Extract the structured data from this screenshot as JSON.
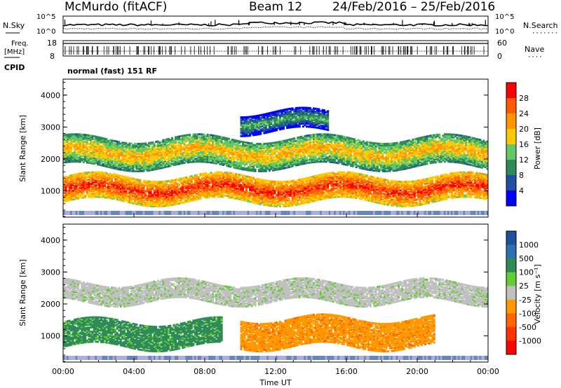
{
  "header": {
    "station": "McMurdo (fitACF)",
    "beam": "Beam 12",
    "date_range": "24/Feb/2016 – 25/Feb/2016",
    "mode": "normal (fast) 151 RF"
  },
  "status_panels": {
    "left_labels": [
      "N.Sky",
      "Freq.",
      "[MHz]",
      "CPID"
    ],
    "right_labels": [
      "N.Search",
      "Nave"
    ],
    "noise_ticks_left": [
      "10^5",
      "10^0"
    ],
    "noise_ticks_right": [
      "10^5",
      "10^0"
    ],
    "freq_ticks_left": [
      "18",
      "8"
    ],
    "nave_ticks_right": [
      "60",
      "0"
    ]
  },
  "chart_data": [
    {
      "type": "heatmap",
      "panel": "power",
      "xlabel": "",
      "ylabel": "Slant Range [km]",
      "xlim": [
        0,
        24
      ],
      "ylim": [
        180,
        4500
      ],
      "yticks": [
        1000,
        2000,
        3000,
        4000
      ],
      "colorbar_label": "Power [dB]",
      "colorbar_ticks": [
        "28",
        "24",
        "20",
        "16",
        "12",
        "8",
        "4"
      ],
      "colorbar_colors": [
        "#ff0000",
        "#ff5a00",
        "#ff9600",
        "#ffc800",
        "#64c864",
        "#2e8b57",
        "#1f4fa0",
        "#0000ff"
      ],
      "regions": [
        {
          "label": "E-region band",
          "x_range": [
            0,
            24
          ],
          "range_km": [
            700,
            1500
          ],
          "level_db": 26
        },
        {
          "label": "F-region band",
          "x_range": [
            0,
            24
          ],
          "range_km": [
            1800,
            2700
          ],
          "level_db": 16
        },
        {
          "label": "High-range patches",
          "x_range": [
            10,
            15
          ],
          "range_km": [
            2900,
            3500
          ],
          "level_db": 12
        }
      ]
    },
    {
      "type": "heatmap",
      "panel": "velocity",
      "xlabel": "Time UT",
      "ylabel": "Slant Range [km]",
      "xlim": [
        0,
        24
      ],
      "ylim": [
        180,
        4500
      ],
      "yticks": [
        1000,
        2000,
        3000,
        4000
      ],
      "xticks": [
        "00:00",
        "04:00",
        "08:00",
        "12:00",
        "16:00",
        "20:00",
        "00:00"
      ],
      "colorbar_label": "Velocity [m s⁻¹]",
      "colorbar_ticks": [
        "1000",
        "500",
        "100",
        "25",
        "-25",
        "-100",
        "-500",
        "-1000"
      ],
      "colorbar_colors": [
        "#1f4fa0",
        "#2e6fb0",
        "#2e8b57",
        "#66cc33",
        "#c0c0c0",
        "#ff9900",
        "#ff6600",
        "#ff3300",
        "#ff0000"
      ],
      "regions": [
        {
          "label": "Positive velocity band",
          "x_range": [
            0,
            9
          ],
          "range_km": [
            700,
            1500
          ],
          "velocity": 200
        },
        {
          "label": "Negative velocity band",
          "x_range": [
            10,
            21
          ],
          "range_km": [
            700,
            1600
          ],
          "velocity": -200
        },
        {
          "label": "Near-zero band",
          "x_range": [
            0,
            24
          ],
          "range_km": [
            2100,
            2700
          ],
          "velocity": 0
        }
      ]
    }
  ]
}
